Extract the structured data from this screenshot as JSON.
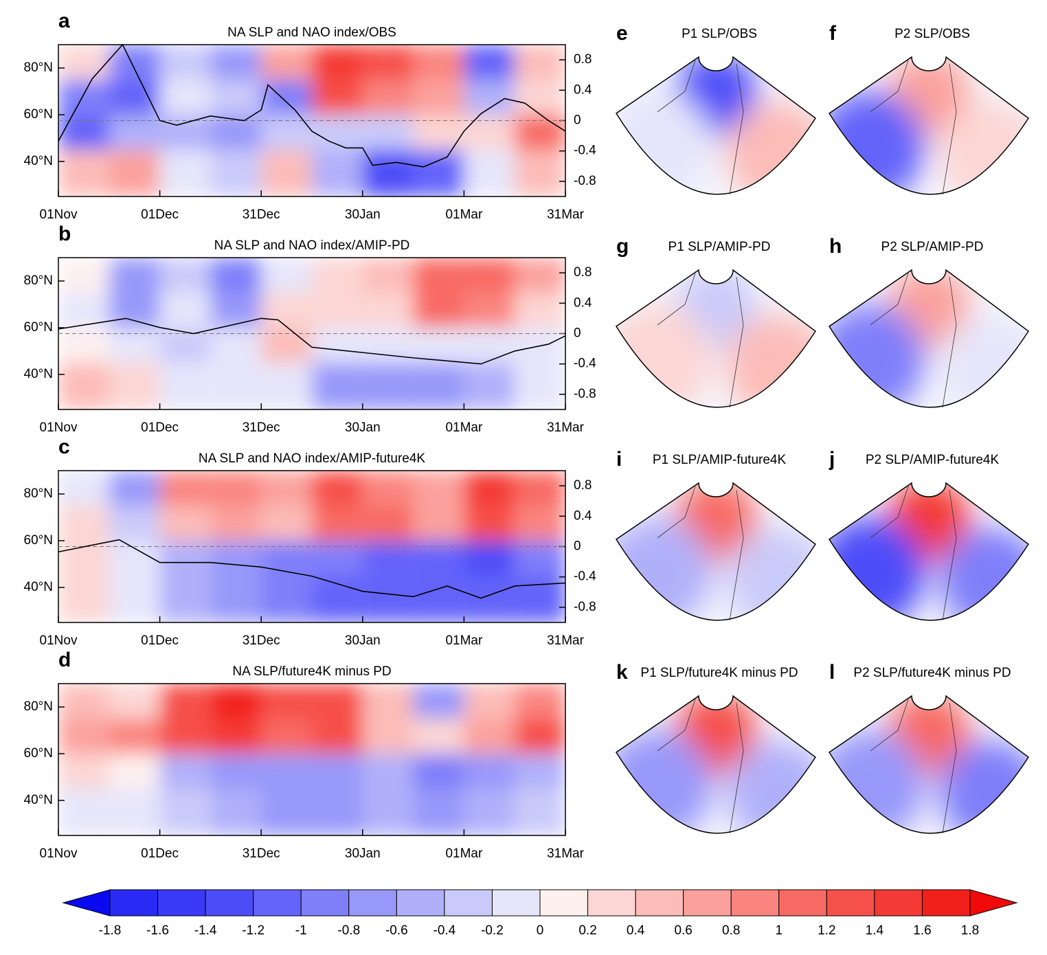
{
  "chart_data": [
    {
      "type": "hovmoller",
      "label": "a",
      "title": "NA SLP and NAO index/OBS",
      "xlim": [
        0,
        150
      ],
      "xticks": [
        {
          "value": 0,
          "label": "01Nov"
        },
        {
          "value": 30,
          "label": "01Dec"
        },
        {
          "value": 60,
          "label": "31Dec"
        },
        {
          "value": 90,
          "label": "30Jan"
        },
        {
          "value": 120,
          "label": "01Mar"
        },
        {
          "value": 150,
          "label": "31Mar"
        }
      ],
      "ylim": [
        25,
        90
      ],
      "yticks": [
        {
          "value": 80,
          "label": "80°N"
        },
        {
          "value": 60,
          "label": "60°N"
        },
        {
          "value": 40,
          "label": "40°N"
        }
      ],
      "y2lim": [
        -1,
        1
      ],
      "y2ticks": [
        0.8,
        0.4,
        0,
        -0.4,
        -0.8
      ],
      "cells": {
        "x": [
          0,
          15,
          30,
          45,
          60,
          75,
          90,
          105,
          120,
          135,
          150
        ],
        "y": [
          90,
          75,
          60,
          45,
          25
        ],
        "values": [
          [
            0.2,
            -1.0,
            -0.4,
            -0.8,
            0.6,
            1.4,
            1.2,
            0.8,
            -1.2,
            0.4
          ],
          [
            -1.0,
            -1.2,
            -0.2,
            -0.4,
            -1.0,
            1.2,
            0.8,
            0.6,
            -0.6,
            0.2
          ],
          [
            -1.2,
            -0.6,
            -0.6,
            -0.8,
            -0.4,
            -0.4,
            -0.4,
            0.2,
            0.2,
            1.0
          ],
          [
            0.4,
            0.6,
            -0.2,
            -0.4,
            0.4,
            -0.6,
            -1.4,
            -1.2,
            -0.2,
            0.4
          ]
        ]
      },
      "series": [
        {
          "axis": "y2",
          "color": "#000000",
          "x": [
            0,
            10,
            19,
            30,
            35,
            45,
            55,
            60,
            62,
            70,
            75,
            80,
            85,
            90,
            93,
            100,
            108,
            115,
            120,
            125,
            132,
            138,
            145,
            150
          ],
          "values": [
            -0.27,
            0.55,
            1.0,
            0,
            -0.06,
            0.06,
            0,
            0.14,
            0.47,
            0.14,
            -0.14,
            -0.27,
            -0.36,
            -0.36,
            -0.59,
            -0.55,
            -0.61,
            -0.48,
            -0.14,
            0.09,
            0.29,
            0.23,
            0,
            -0.14
          ]
        }
      ]
    },
    {
      "type": "hovmoller",
      "label": "b",
      "title": "NA SLP and NAO index/AMIP-PD",
      "xlim": [
        0,
        150
      ],
      "xticks": [
        {
          "value": 0,
          "label": "01Nov"
        },
        {
          "value": 30,
          "label": "01Dec"
        },
        {
          "value": 60,
          "label": "31Dec"
        },
        {
          "value": 90,
          "label": "30Jan"
        },
        {
          "value": 120,
          "label": "01Mar"
        },
        {
          "value": 150,
          "label": "31Mar"
        }
      ],
      "ylim": [
        25,
        90
      ],
      "yticks": [
        {
          "value": 80,
          "label": "80°N"
        },
        {
          "value": 60,
          "label": "60°N"
        },
        {
          "value": 40,
          "label": "40°N"
        }
      ],
      "y2lim": [
        -1,
        1
      ],
      "y2ticks": [
        0.8,
        0.4,
        0,
        -0.4,
        -0.8
      ],
      "cells": {
        "x": [
          0,
          15,
          30,
          45,
          60,
          75,
          90,
          105,
          120,
          135,
          150
        ],
        "y": [
          90,
          75,
          60,
          45,
          25
        ],
        "values": [
          [
            0,
            -0.8,
            -0.4,
            -1.0,
            -0.2,
            0.2,
            0.4,
            1.0,
            1.0,
            0.6
          ],
          [
            -0.2,
            -0.8,
            -0.2,
            -0.8,
            0.2,
            0.2,
            0.2,
            1.0,
            0.8,
            0.2
          ],
          [
            0,
            -0.2,
            -0.4,
            -0.2,
            0.4,
            -0.2,
            -0.2,
            -0.2,
            -0.2,
            -0.2
          ],
          [
            0.4,
            0.2,
            -0.2,
            -0.2,
            -0.2,
            -0.8,
            -0.8,
            -0.8,
            -0.6,
            -0.2
          ]
        ]
      },
      "series": [
        {
          "axis": "y2",
          "color": "#000000",
          "x": [
            0,
            20,
            30,
            40,
            60,
            65,
            75,
            90,
            105,
            125,
            135,
            145,
            150
          ],
          "values": [
            0.06,
            0.2,
            0.08,
            0,
            0.2,
            0.18,
            -0.18,
            -0.25,
            -0.32,
            -0.4,
            -0.23,
            -0.14,
            -0.03
          ]
        }
      ]
    },
    {
      "type": "hovmoller",
      "label": "c",
      "title": "NA SLP and NAO index/AMIP-future4K",
      "xlim": [
        0,
        150
      ],
      "xticks": [
        {
          "value": 0,
          "label": "01Nov"
        },
        {
          "value": 30,
          "label": "01Dec"
        },
        {
          "value": 60,
          "label": "31Dec"
        },
        {
          "value": 90,
          "label": "30Jan"
        },
        {
          "value": 120,
          "label": "01Mar"
        },
        {
          "value": 150,
          "label": "31Mar"
        }
      ],
      "ylim": [
        25,
        90
      ],
      "yticks": [
        {
          "value": 80,
          "label": "80°N"
        },
        {
          "value": 60,
          "label": "60°N"
        },
        {
          "value": 40,
          "label": "40°N"
        }
      ],
      "y2lim": [
        -1,
        1
      ],
      "y2ticks": [
        0.8,
        0.4,
        0,
        -0.4,
        -0.8
      ],
      "cells": {
        "x": [
          0,
          15,
          30,
          45,
          60,
          75,
          90,
          105,
          120,
          135,
          150
        ],
        "y": [
          90,
          75,
          60,
          45,
          25
        ],
        "values": [
          [
            -0.2,
            -0.8,
            0.8,
            0.8,
            0.6,
            1.2,
            0.8,
            0.6,
            1.4,
            1.0
          ],
          [
            0.2,
            -0.4,
            0.4,
            0.6,
            0.4,
            1.0,
            1.0,
            0.6,
            1.2,
            0.8
          ],
          [
            0.2,
            -0.2,
            -0.6,
            -0.8,
            -1.0,
            -1.0,
            -1.2,
            -1.2,
            -1.4,
            -1.0
          ],
          [
            0.2,
            -0.2,
            -0.6,
            -0.8,
            -1.0,
            -1.2,
            -1.2,
            -1.2,
            -1.2,
            -1.2
          ]
        ]
      },
      "series": [
        {
          "axis": "y2",
          "color": "#000000",
          "x": [
            0,
            18,
            30,
            45,
            60,
            75,
            90,
            105,
            115,
            125,
            135,
            150
          ],
          "values": [
            -0.07,
            0.09,
            -0.21,
            -0.21,
            -0.27,
            -0.39,
            -0.59,
            -0.66,
            -0.52,
            -0.68,
            -0.52,
            -0.48
          ]
        }
      ]
    },
    {
      "type": "hovmoller",
      "label": "d",
      "title": "NA SLP/future4K minus PD",
      "xlim": [
        0,
        150
      ],
      "xticks": [
        {
          "value": 0,
          "label": "01Nov"
        },
        {
          "value": 30,
          "label": "01Dec"
        },
        {
          "value": 60,
          "label": "31Dec"
        },
        {
          "value": 90,
          "label": "30Jan"
        },
        {
          "value": 120,
          "label": "01Mar"
        },
        {
          "value": 150,
          "label": "31Mar"
        }
      ],
      "ylim": [
        25,
        90
      ],
      "yticks": [
        {
          "value": 80,
          "label": "80°N"
        },
        {
          "value": 60,
          "label": "60°N"
        },
        {
          "value": 40,
          "label": "40°N"
        }
      ],
      "cells": {
        "x": [
          0,
          15,
          30,
          45,
          60,
          75,
          90,
          105,
          120,
          135,
          150
        ],
        "y": [
          90,
          75,
          60,
          45,
          25
        ],
        "values": [
          [
            0.4,
            0.2,
            1.2,
            1.6,
            1.2,
            1.2,
            0.4,
            -0.8,
            0.4,
            0.8
          ],
          [
            0.6,
            0.8,
            1.2,
            1.4,
            1.0,
            1.2,
            0.4,
            0.2,
            0.6,
            1.2
          ],
          [
            0.2,
            0,
            -0.6,
            -0.8,
            -0.8,
            -0.8,
            -0.6,
            -1.0,
            -0.8,
            -0.6
          ],
          [
            -0.2,
            -0.2,
            -0.4,
            -0.6,
            -0.8,
            -0.8,
            -0.6,
            -0.8,
            -0.6,
            -0.4
          ]
        ]
      }
    },
    {
      "type": "map",
      "label": "e",
      "title": "P1 SLP/OBS",
      "values": [
        -1.4,
        -0.2,
        0.4
      ]
    },
    {
      "type": "map",
      "label": "f",
      "title": "P2 SLP/OBS",
      "values": [
        0.6,
        -1.2,
        0.2
      ]
    },
    {
      "type": "map",
      "label": "g",
      "title": "P1 SLP/AMIP-PD",
      "values": [
        -0.4,
        0.2,
        0.4
      ]
    },
    {
      "type": "map",
      "label": "h",
      "title": "P2 SLP/AMIP-PD",
      "values": [
        0.6,
        -1.0,
        -0.2
      ]
    },
    {
      "type": "map",
      "label": "i",
      "title": "P1 SLP/AMIP-future4K",
      "values": [
        1.0,
        -0.6,
        -0.4
      ]
    },
    {
      "type": "map",
      "label": "j",
      "title": "P2 SLP/AMIP-future4K",
      "values": [
        1.4,
        -1.4,
        -1.0
      ]
    },
    {
      "type": "map",
      "label": "k",
      "title": "P1 SLP/future4K minus PD",
      "values": [
        1.2,
        -0.8,
        -0.6
      ]
    },
    {
      "type": "map",
      "label": "l",
      "title": "P2 SLP/future4K minus PD",
      "values": [
        1.0,
        -0.8,
        -1.0
      ]
    }
  ],
  "colorbar": {
    "levels": [
      -1.8,
      -1.6,
      -1.4,
      -1.2,
      -1,
      -0.8,
      -0.6,
      -0.4,
      -0.2,
      0,
      0.2,
      0.4,
      0.6,
      0.8,
      1,
      1.2,
      1.4,
      1.6,
      1.8
    ],
    "colors": [
      "#0a0af0",
      "#2a2af5",
      "#3a3af7",
      "#4d4df8",
      "#6464fa",
      "#7f7ffa",
      "#9898fa",
      "#b0b0fa",
      "#cacafa",
      "#e6e6fb",
      "#fdf0ef",
      "#fcd6d4",
      "#fcbcb8",
      "#fba19c",
      "#fa8580",
      "#f86a64",
      "#f6504a",
      "#f43a34",
      "#f2201a",
      "#f00a0a"
    ]
  }
}
